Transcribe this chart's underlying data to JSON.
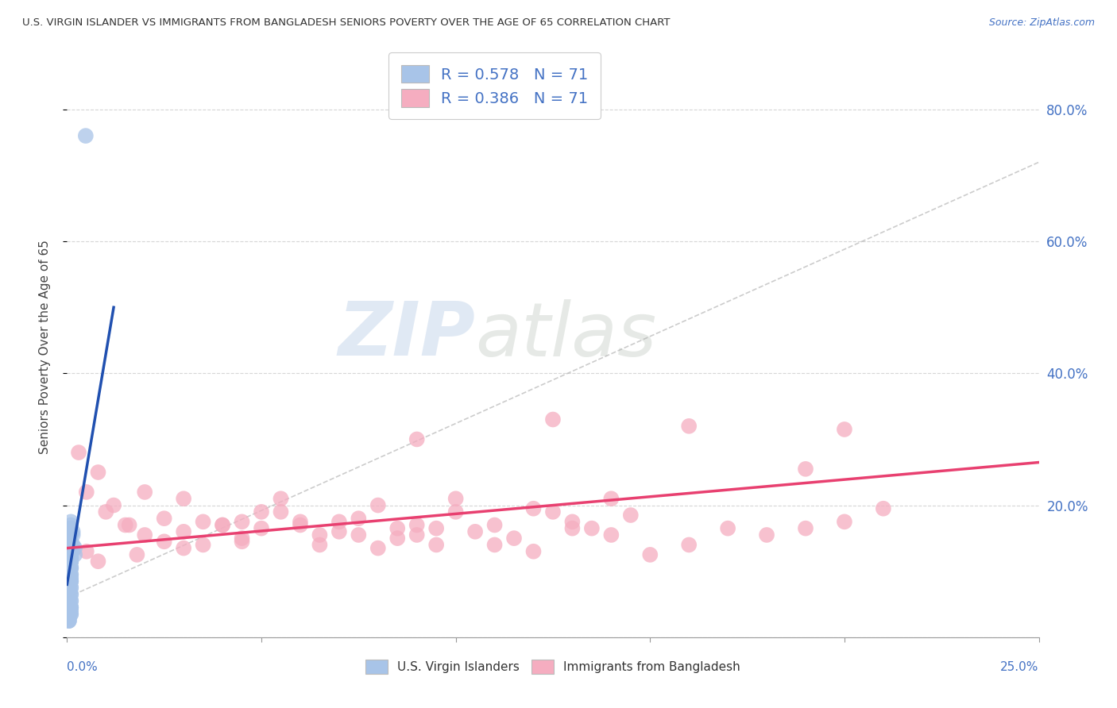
{
  "title": "U.S. VIRGIN ISLANDER VS IMMIGRANTS FROM BANGLADESH SENIORS POVERTY OVER THE AGE OF 65 CORRELATION CHART",
  "source": "Source: ZipAtlas.com",
  "ylabel": "Seniors Poverty Over the Age of 65",
  "right_yticks": [
    0.0,
    0.2,
    0.4,
    0.6,
    0.8
  ],
  "right_yticklabels": [
    "",
    "20.0%",
    "40.0%",
    "60.0%",
    "80.0%"
  ],
  "xlim": [
    0.0,
    0.25
  ],
  "ylim": [
    0.0,
    0.88
  ],
  "legend1_label": "R = 0.578   N = 71",
  "legend2_label": "R = 0.386   N = 71",
  "blue_color": "#a8c4e8",
  "pink_color": "#f5adc0",
  "blue_line_color": "#2050b0",
  "pink_line_color": "#e84070",
  "watermark_zip": "ZIP",
  "watermark_atlas": "atlas",
  "blue_scatter_x": [
    0.0005,
    0.0008,
    0.001,
    0.0005,
    0.001,
    0.0015,
    0.0005,
    0.001,
    0.002,
    0.001,
    0.0005,
    0.001,
    0.001,
    0.0015,
    0.0005,
    0.001,
    0.001,
    0.0005,
    0.002,
    0.001,
    0.0005,
    0.001,
    0.001,
    0.001,
    0.0005,
    0.001,
    0.0015,
    0.001,
    0.0005,
    0.001,
    0.0005,
    0.001,
    0.001,
    0.0005,
    0.001,
    0.0005,
    0.001,
    0.001,
    0.001,
    0.0005,
    0.001,
    0.001,
    0.0005,
    0.001,
    0.001,
    0.0005,
    0.001,
    0.001,
    0.001,
    0.0005,
    0.0005,
    0.001,
    0.001,
    0.0005,
    0.001,
    0.0005,
    0.001,
    0.001,
    0.0005,
    0.001,
    0.0005,
    0.001,
    0.001,
    0.001,
    0.0005,
    0.001,
    0.001,
    0.0005,
    0.001,
    0.0048,
    0.001
  ],
  "blue_scatter_y": [
    0.155,
    0.165,
    0.12,
    0.14,
    0.13,
    0.16,
    0.105,
    0.115,
    0.135,
    0.17,
    0.095,
    0.155,
    0.125,
    0.14,
    0.115,
    0.085,
    0.135,
    0.105,
    0.125,
    0.16,
    0.075,
    0.115,
    0.145,
    0.135,
    0.095,
    0.125,
    0.155,
    0.105,
    0.085,
    0.135,
    0.065,
    0.095,
    0.115,
    0.075,
    0.105,
    0.055,
    0.085,
    0.125,
    0.135,
    0.065,
    0.09,
    0.105,
    0.045,
    0.075,
    0.085,
    0.055,
    0.065,
    0.095,
    0.115,
    0.035,
    0.155,
    0.165,
    0.175,
    0.145,
    0.12,
    0.025,
    0.035,
    0.045,
    0.025,
    0.055,
    0.03,
    0.065,
    0.045,
    0.075,
    0.035,
    0.045,
    0.055,
    0.025,
    0.035,
    0.76,
    0.04
  ],
  "pink_scatter_x": [
    0.003,
    0.005,
    0.008,
    0.012,
    0.016,
    0.02,
    0.025,
    0.03,
    0.035,
    0.04,
    0.045,
    0.05,
    0.055,
    0.06,
    0.065,
    0.07,
    0.075,
    0.08,
    0.085,
    0.09,
    0.095,
    0.1,
    0.105,
    0.11,
    0.115,
    0.12,
    0.125,
    0.13,
    0.135,
    0.14,
    0.005,
    0.01,
    0.015,
    0.02,
    0.025,
    0.03,
    0.035,
    0.04,
    0.045,
    0.05,
    0.055,
    0.06,
    0.065,
    0.07,
    0.075,
    0.08,
    0.085,
    0.09,
    0.095,
    0.1,
    0.11,
    0.12,
    0.13,
    0.14,
    0.15,
    0.16,
    0.17,
    0.18,
    0.19,
    0.2,
    0.008,
    0.018,
    0.03,
    0.045,
    0.16,
    0.19,
    0.21,
    0.2,
    0.145,
    0.125,
    0.09
  ],
  "pink_scatter_y": [
    0.28,
    0.22,
    0.25,
    0.2,
    0.17,
    0.22,
    0.18,
    0.16,
    0.14,
    0.17,
    0.15,
    0.19,
    0.21,
    0.17,
    0.14,
    0.16,
    0.18,
    0.2,
    0.15,
    0.17,
    0.14,
    0.21,
    0.16,
    0.17,
    0.15,
    0.13,
    0.19,
    0.175,
    0.165,
    0.21,
    0.13,
    0.19,
    0.17,
    0.155,
    0.145,
    0.21,
    0.175,
    0.17,
    0.145,
    0.165,
    0.19,
    0.175,
    0.155,
    0.175,
    0.155,
    0.135,
    0.165,
    0.155,
    0.165,
    0.19,
    0.14,
    0.195,
    0.165,
    0.155,
    0.125,
    0.14,
    0.165,
    0.155,
    0.165,
    0.175,
    0.115,
    0.125,
    0.135,
    0.175,
    0.32,
    0.255,
    0.195,
    0.315,
    0.185,
    0.33,
    0.3
  ],
  "blue_trend_x": [
    0.0,
    0.012
  ],
  "blue_trend_y": [
    0.08,
    0.5
  ],
  "pink_trend_x": [
    0.0,
    0.25
  ],
  "pink_trend_y": [
    0.135,
    0.265
  ],
  "ref_line_x": [
    0.0,
    0.25
  ],
  "ref_line_y": [
    0.06,
    0.72
  ]
}
